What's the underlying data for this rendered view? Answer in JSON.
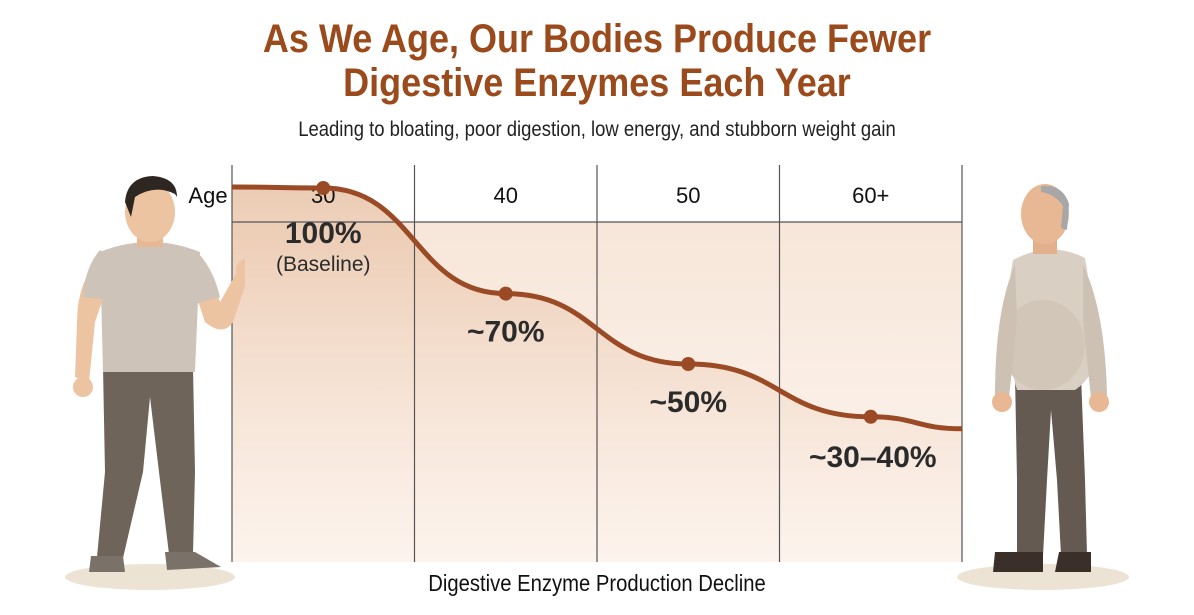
{
  "title_line1": "As We Age, Our Bodies Produce Fewer",
  "title_line2": "Digestive Enzymes Each Year",
  "subtitle": "Leading to bloating, poor digestion, low energy, and stubborn weight gain",
  "colors": {
    "title": "#9b4a1c",
    "curve": "#9a4a24",
    "fill": "#f3dccb"
  },
  "chart_data": {
    "type": "line",
    "title": "As We Age, Our Bodies Produce Fewer Digestive Enzymes Each Year",
    "subtitle": "Leading to bloating, poor digestion, low energy, and stubborn weight gain",
    "xlabel": "Digestive Enzyme Production Decline",
    "axis_label": "Age",
    "categories": [
      "30",
      "40",
      "50",
      "60+"
    ],
    "values": [
      100,
      70,
      50,
      35
    ],
    "point_labels": [
      "100%",
      "~70%",
      "~50%",
      "~30–40%"
    ],
    "baseline_note": "(Baseline)",
    "ylim": [
      0,
      110
    ],
    "grid": true
  }
}
